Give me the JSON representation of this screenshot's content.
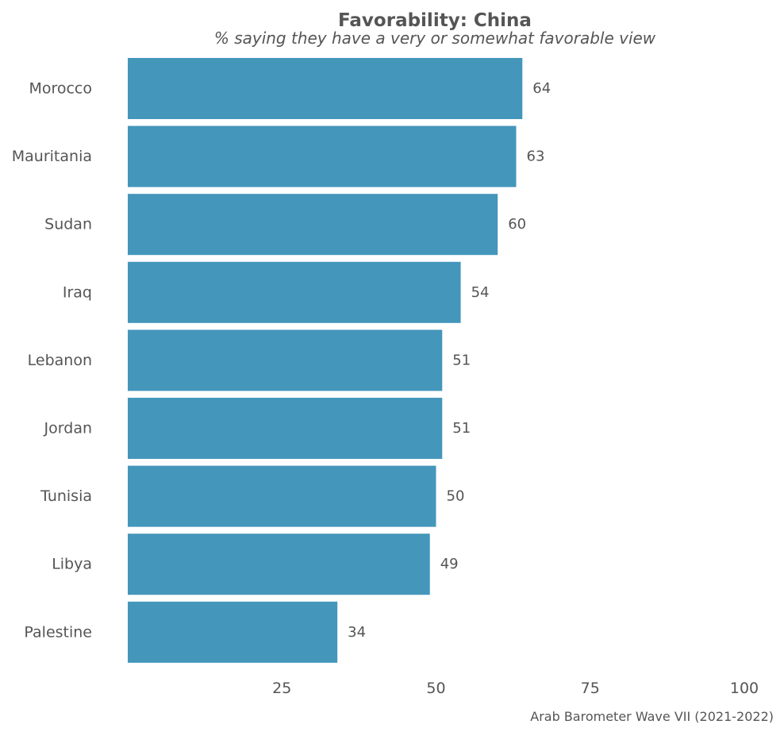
{
  "chart_data": {
    "type": "bar",
    "orientation": "horizontal",
    "title": "Favorability: China",
    "subtitle": "% saying they have a very or somewhat favorable view",
    "categories": [
      "Morocco",
      "Mauritania",
      "Sudan",
      "Iraq",
      "Lebanon",
      "Jordan",
      "Tunisia",
      "Libya",
      "Palestine"
    ],
    "values": [
      64,
      63,
      60,
      54,
      51,
      51,
      50,
      49,
      34
    ],
    "xlim": [
      0,
      100
    ],
    "x_ticks": [
      "25",
      "50",
      "75",
      "100"
    ],
    "grid": false,
    "legend": "none",
    "bar_color": "#4496bb",
    "text_color": "#555555",
    "caption": "Arab Barometer Wave VII (2021-2022)"
  }
}
